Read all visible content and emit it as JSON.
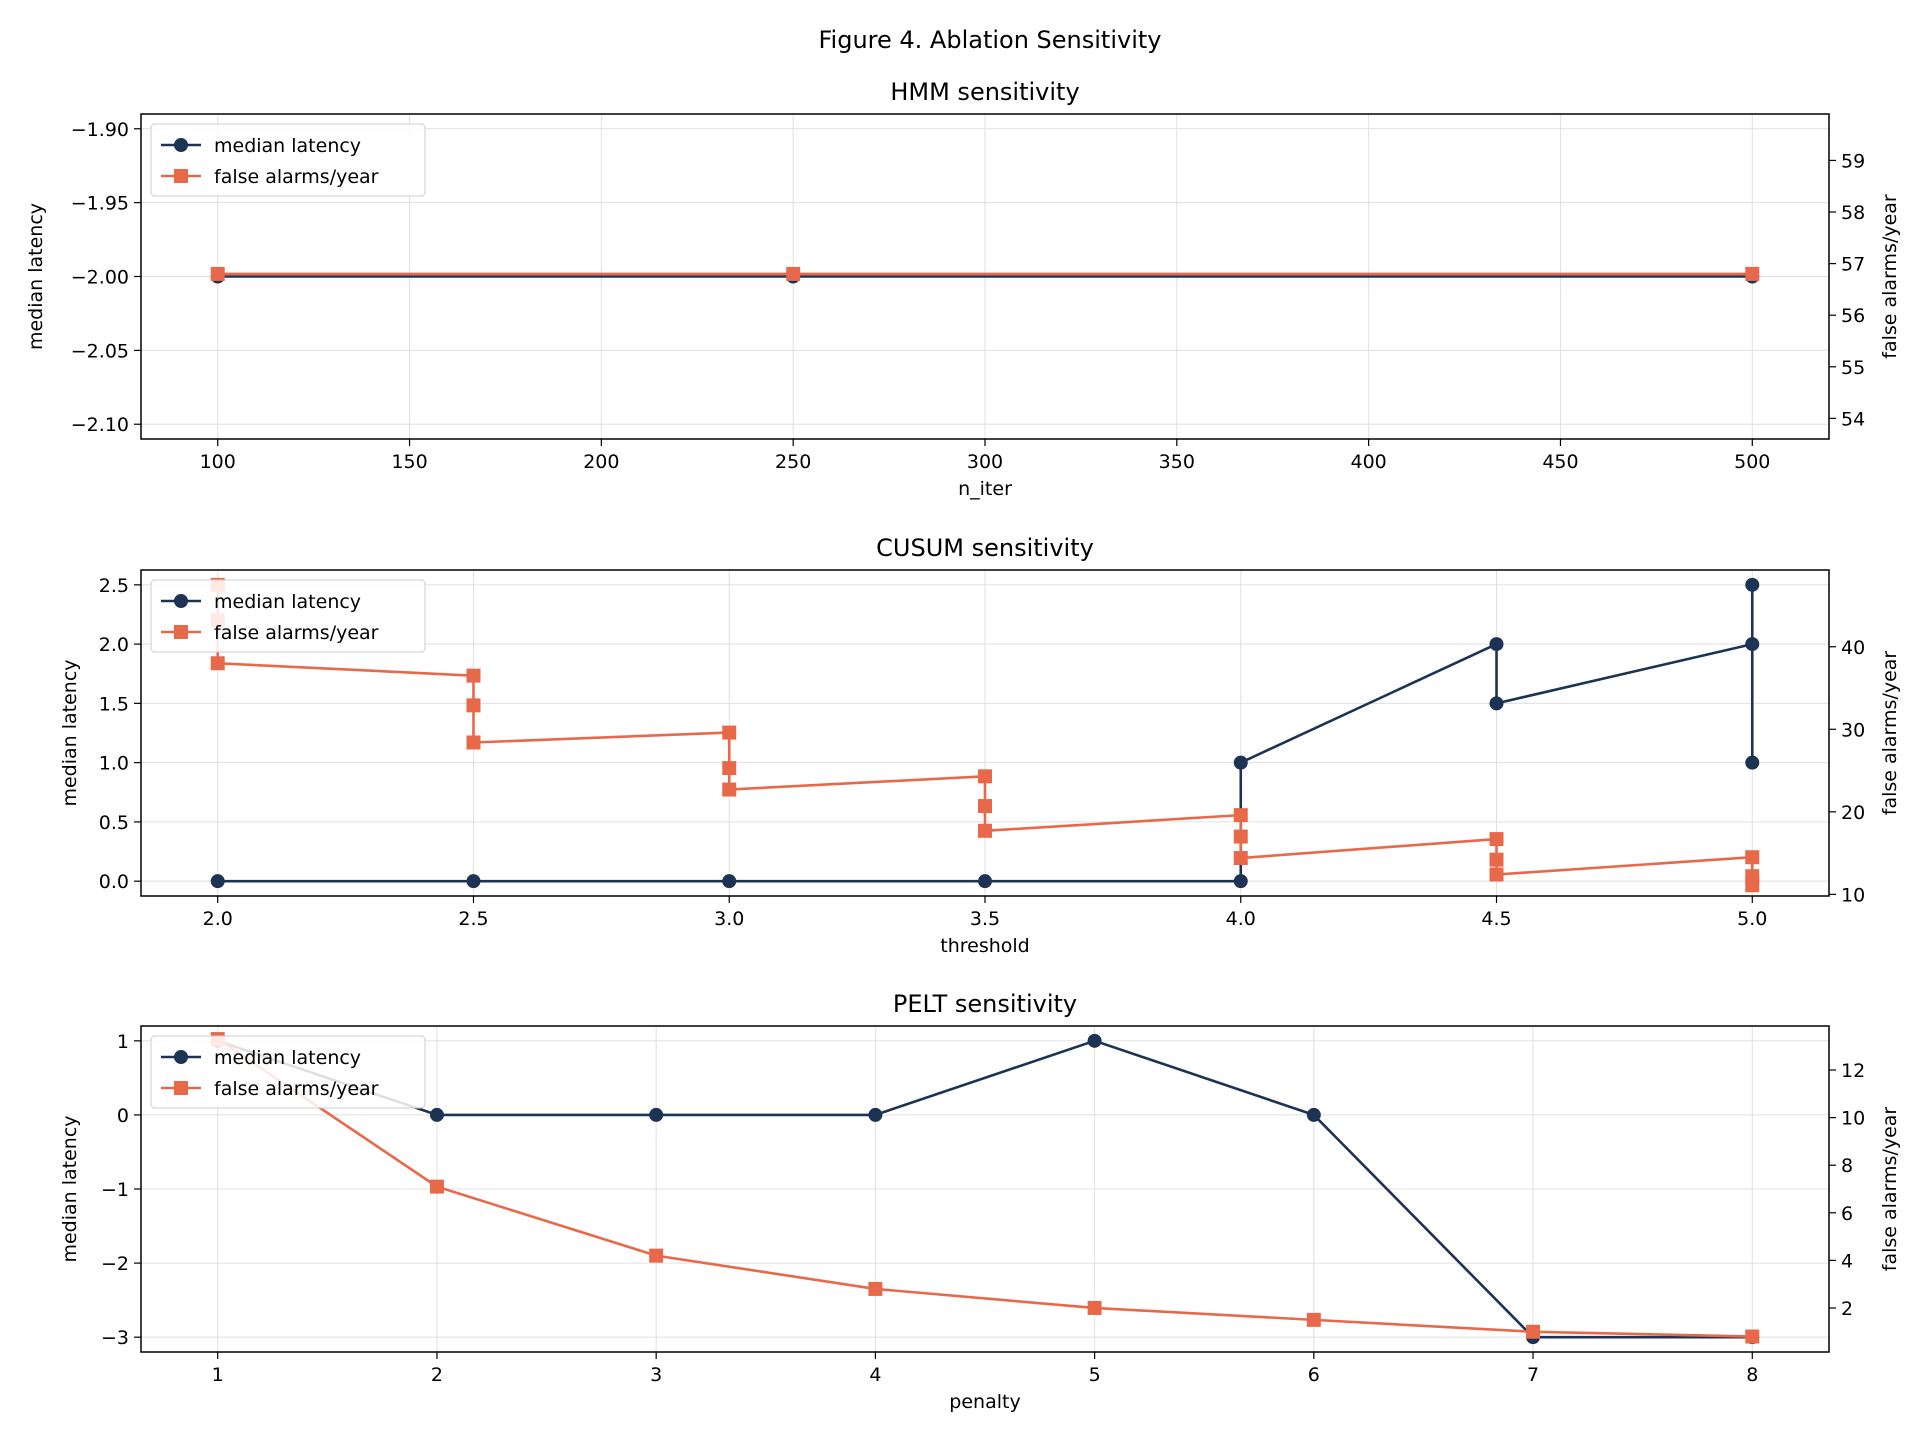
{
  "figure": {
    "title": "Figure 4. Ablation Sensitivity"
  },
  "colors": {
    "latency": "#1d3354",
    "alarms": "#e8694a",
    "grid": "#e0e0e0",
    "frame": "#000000"
  },
  "legend": {
    "latency_label": "median latency",
    "alarms_label": "false alarms/year",
    "location": "upper left"
  },
  "chart_data": [
    {
      "type": "line",
      "title": "HMM sensitivity",
      "xlabel": "n_iter",
      "ylabel": "median latency",
      "y2label": "false alarms/year",
      "grid": true,
      "xlim": [
        80,
        520
      ],
      "ylim": [
        -2.11,
        -1.89
      ],
      "y2lim": [
        53.6,
        59.9
      ],
      "x_ticks": [
        100,
        150,
        200,
        250,
        300,
        350,
        400,
        450,
        500
      ],
      "x_tick_labels": [
        "100",
        "150",
        "200",
        "250",
        "300",
        "350",
        "400",
        "450",
        "500"
      ],
      "y_ticks": [
        -2.1,
        -2.05,
        -2.0,
        -1.95,
        -1.9
      ],
      "y_tick_labels": [
        "−2.10",
        "−2.05",
        "−2.00",
        "−1.95",
        "−1.90"
      ],
      "y2_ticks": [
        54,
        55,
        56,
        57,
        58,
        59
      ],
      "y2_tick_labels": [
        "54",
        "55",
        "56",
        "57",
        "58",
        "59"
      ],
      "series": [
        {
          "name": "median latency",
          "axis": "left",
          "marker": "circle",
          "x": [
            100,
            250,
            500
          ],
          "y": [
            -2.0,
            -2.0,
            -2.0
          ]
        },
        {
          "name": "false alarms/year",
          "axis": "right",
          "marker": "square",
          "x": [
            100,
            250,
            500
          ],
          "y": [
            56.8,
            56.8,
            56.8
          ]
        }
      ]
    },
    {
      "type": "line",
      "title": "CUSUM sensitivity",
      "xlabel": "threshold",
      "ylabel": "median latency",
      "y2label": "false alarms/year",
      "grid": true,
      "xlim": [
        1.85,
        5.15
      ],
      "ylim": [
        -0.125,
        2.625
      ],
      "y2lim": [
        9.8,
        49.3
      ],
      "x_ticks": [
        2.0,
        2.5,
        3.0,
        3.5,
        4.0,
        4.5,
        5.0
      ],
      "x_tick_labels": [
        "2.0",
        "2.5",
        "3.0",
        "3.5",
        "4.0",
        "4.5",
        "5.0"
      ],
      "y_ticks": [
        0.0,
        0.5,
        1.0,
        1.5,
        2.0,
        2.5
      ],
      "y_tick_labels": [
        "0.0",
        "0.5",
        "1.0",
        "1.5",
        "2.0",
        "2.5"
      ],
      "y2_ticks": [
        10,
        20,
        30,
        40
      ],
      "y2_tick_labels": [
        "10",
        "20",
        "30",
        "40"
      ],
      "series": [
        {
          "name": "median latency",
          "axis": "left",
          "marker": "circle",
          "x": [
            2.0,
            2.5,
            3.0,
            3.5,
            4.0,
            4.0,
            4.5,
            4.5,
            5.0,
            5.0,
            5.0
          ],
          "y": [
            0,
            0,
            0,
            0,
            0,
            1.0,
            2.0,
            1.5,
            2.0,
            2.5,
            1.0
          ]
        },
        {
          "name": "false alarms/year",
          "axis": "right",
          "marker": "square",
          "x": [
            2.0,
            2.0,
            2.0,
            2.5,
            2.5,
            2.5,
            3.0,
            3.0,
            3.0,
            3.5,
            3.5,
            3.5,
            4.0,
            4.0,
            4.0,
            4.5,
            4.5,
            4.5,
            5.0,
            5.0,
            5.0
          ],
          "y": [
            47.5,
            43.2,
            38.0,
            36.5,
            32.9,
            28.4,
            29.6,
            25.3,
            22.7,
            24.3,
            20.7,
            17.7,
            19.6,
            17.0,
            14.4,
            16.7,
            14.2,
            12.4,
            14.5,
            12.2,
            11.1
          ]
        }
      ]
    },
    {
      "type": "line",
      "title": "PELT sensitivity",
      "xlabel": "penalty",
      "ylabel": "median latency",
      "y2label": "false alarms/year",
      "grid": true,
      "xlim": [
        0.65,
        8.35
      ],
      "ylim": [
        -3.2,
        1.2
      ],
      "y2lim": [
        0.15,
        13.85
      ],
      "x_ticks": [
        1,
        2,
        3,
        4,
        5,
        6,
        7,
        8
      ],
      "x_tick_labels": [
        "1",
        "2",
        "3",
        "4",
        "5",
        "6",
        "7",
        "8"
      ],
      "y_ticks": [
        -3,
        -2,
        -1,
        0,
        1
      ],
      "y_tick_labels": [
        "−3",
        "−2",
        "−1",
        "0",
        "1"
      ],
      "y2_ticks": [
        2,
        4,
        6,
        8,
        10,
        12
      ],
      "y2_tick_labels": [
        "2",
        "4",
        "6",
        "8",
        "10",
        "12"
      ],
      "series": [
        {
          "name": "median latency",
          "axis": "left",
          "marker": "circle",
          "x": [
            1,
            2,
            3,
            4,
            5,
            6,
            7,
            8
          ],
          "y": [
            1,
            0,
            0,
            0,
            1,
            0,
            -3,
            -3
          ]
        },
        {
          "name": "false alarms/year",
          "axis": "right",
          "marker": "square",
          "x": [
            1,
            2,
            3,
            4,
            5,
            6,
            7,
            8
          ],
          "y": [
            13.3,
            7.1,
            4.2,
            2.8,
            2.0,
            1.5,
            1.0,
            0.8
          ]
        }
      ]
    }
  ]
}
